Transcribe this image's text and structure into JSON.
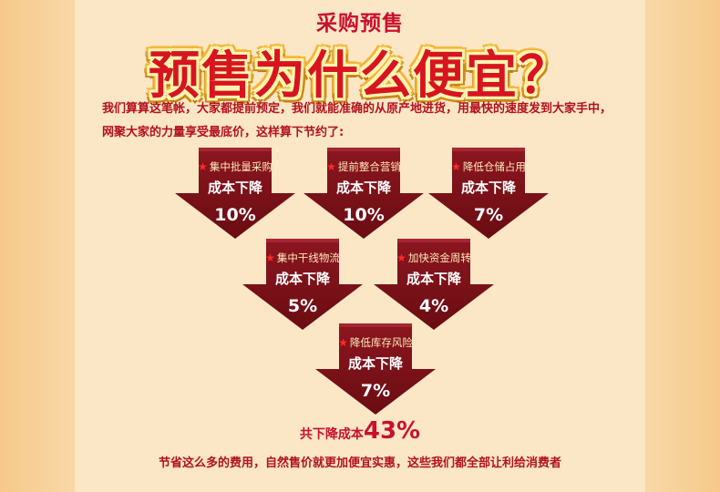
{
  "header": {
    "subtitle": "采购预售",
    "headline": "预售为什么便宜？"
  },
  "intro": {
    "line1": "我们算算这笔帐，大家都提前预定，我们就能准确的从原产地进货，用最快的速度发到大家手中，",
    "line2": "网聚大家的力量享受最底价，这样算下节约了:"
  },
  "colors": {
    "accent_red": "#c8102e",
    "arrow_dark": "#7a0f16",
    "star_red": "#ff2a2a"
  },
  "arrows": [
    {
      "label": "集中批量采购",
      "action": "成本下降",
      "percent": "10%"
    },
    {
      "label": "提前整合营销",
      "action": "成本下降",
      "percent": "10%"
    },
    {
      "label": "降低仓储占用",
      "action": "成本下降",
      "percent": "7%"
    },
    {
      "label": "集中干线物流",
      "action": "成本下降",
      "percent": "5%"
    },
    {
      "label": "加快资金周转",
      "action": "成本下降",
      "percent": "4%"
    },
    {
      "label": "降低库存风险",
      "action": "成本下降",
      "percent": "7%"
    }
  ],
  "total": {
    "label": "共下降成本",
    "value": "43%"
  },
  "footer": {
    "text": "节省这么多的费用，自然售价就更加便宜实惠，这些我们都全部让利给消费者"
  }
}
